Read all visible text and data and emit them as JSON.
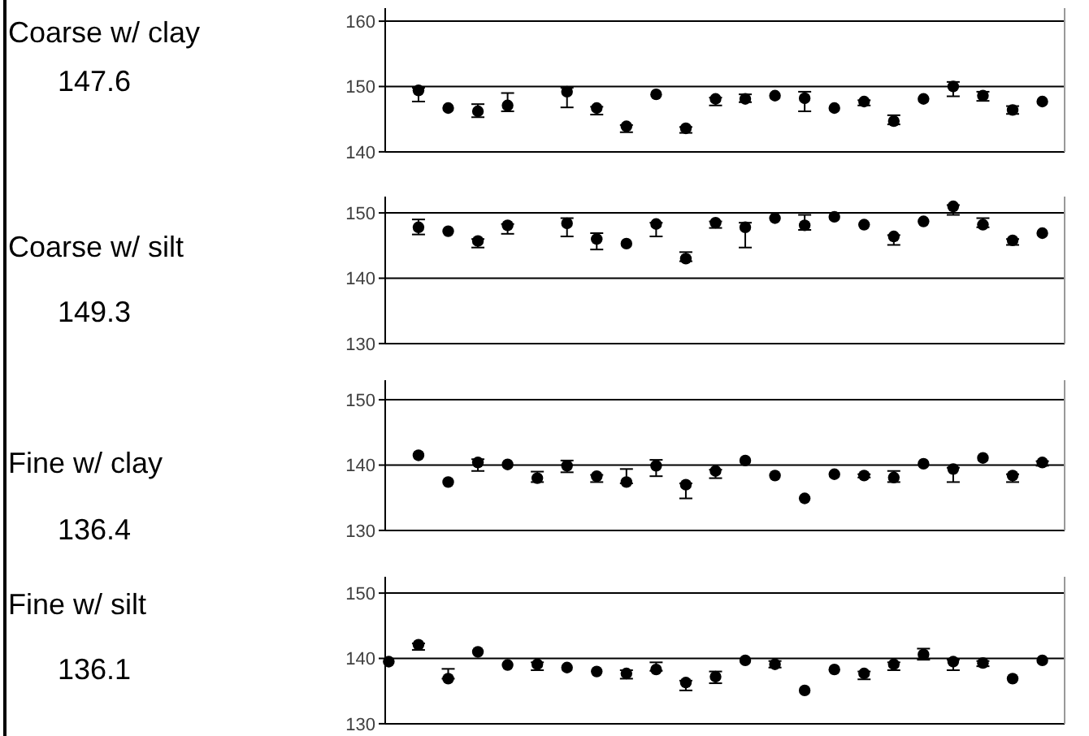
{
  "chart_data": [
    {
      "type": "scatter",
      "annotations": [
        "Coarse w/ clay",
        "147.6"
      ],
      "categories": [
        null,
        null,
        null,
        null,
        null,
        null,
        null,
        null,
        null,
        null,
        null,
        null,
        null,
        null,
        null,
        null,
        null,
        null,
        null,
        null,
        null,
        null,
        null
      ],
      "color": "#000000",
      "marker": "circle",
      "grid": "y",
      "tick_labels": "y",
      "ylim": [
        140,
        162
      ],
      "yticks": [
        140,
        150,
        160
      ],
      "values": [
        null,
        149.4,
        146.7,
        146.2,
        147.1,
        null,
        149.2,
        146.7,
        143.9,
        148.8,
        143.6,
        148.1,
        148.1,
        148.6,
        148.2,
        146.7,
        147.7,
        144.7,
        148.1,
        150.0,
        148.6,
        146.4,
        147.7
      ],
      "errors": [
        null,
        [
          147.7,
          149.8
        ],
        null,
        [
          145.3,
          147.3
        ],
        [
          146.2,
          149.0
        ],
        null,
        [
          146.8,
          149.8
        ],
        [
          145.7,
          146.9
        ],
        [
          143.0,
          144.1
        ],
        null,
        [
          142.9,
          143.8
        ],
        [
          147.1,
          148.3
        ],
        [
          147.6,
          148.8
        ],
        null,
        [
          146.2,
          149.2
        ],
        null,
        [
          147.1,
          147.9
        ],
        [
          144.2,
          145.6
        ],
        null,
        [
          148.5,
          150.7
        ],
        [
          147.8,
          149.2
        ],
        [
          145.8,
          147.0
        ],
        null
      ]
    },
    {
      "type": "scatter",
      "annotations": [
        "Coarse w/ silt",
        "149.3"
      ],
      "categories": [
        null,
        null,
        null,
        null,
        null,
        null,
        null,
        null,
        null,
        null,
        null,
        null,
        null,
        null,
        null,
        null,
        null,
        null,
        null,
        null,
        null,
        null,
        null
      ],
      "color": "#000000",
      "marker": "circle",
      "grid": "y",
      "tick_labels": "y",
      "ylim": [
        130,
        152.5
      ],
      "yticks": [
        130,
        140,
        150
      ],
      "values": [
        null,
        147.8,
        147.2,
        145.7,
        148.1,
        null,
        148.4,
        146.0,
        145.3,
        148.3,
        143.0,
        148.5,
        147.8,
        149.2,
        148.1,
        149.4,
        148.2,
        146.4,
        148.7,
        151.0,
        148.2,
        145.8,
        146.9
      ],
      "errors": [
        null,
        [
          146.7,
          149.0
        ],
        null,
        [
          144.7,
          146.0
        ],
        [
          146.8,
          148.3
        ],
        null,
        [
          146.4,
          149.2
        ],
        [
          144.4,
          146.9
        ],
        null,
        [
          146.4,
          148.5
        ],
        [
          142.6,
          144.0
        ],
        [
          147.7,
          148.7
        ],
        [
          144.7,
          148.5
        ],
        null,
        [
          147.4,
          149.7
        ],
        null,
        null,
        [
          145.1,
          146.6
        ],
        null,
        [
          149.7,
          151.2
        ],
        [
          147.8,
          149.2
        ],
        [
          145.1,
          146.0
        ],
        null
      ]
    },
    {
      "type": "scatter",
      "annotations": [
        "Fine w/ clay",
        "136.4"
      ],
      "categories": [
        null,
        null,
        null,
        null,
        null,
        null,
        null,
        null,
        null,
        null,
        null,
        null,
        null,
        null,
        null,
        null,
        null,
        null,
        null,
        null,
        null,
        null,
        null
      ],
      "color": "#000000",
      "marker": "circle",
      "grid": "y",
      "tick_labels": "y",
      "ylim": [
        130,
        153
      ],
      "yticks": [
        130,
        140,
        150
      ],
      "values": [
        null,
        141.5,
        137.4,
        140.4,
        140.1,
        138.0,
        139.9,
        138.3,
        137.4,
        139.9,
        137.0,
        139.1,
        140.7,
        138.4,
        134.9,
        138.6,
        138.4,
        138.1,
        140.2,
        139.4,
        141.1,
        138.4,
        140.4
      ],
      "errors": [
        null,
        null,
        null,
        [
          139.1,
          140.9
        ],
        null,
        [
          137.4,
          139.0
        ],
        [
          138.9,
          140.7
        ],
        [
          137.4,
          138.5
        ],
        [
          137.2,
          139.4
        ],
        [
          138.3,
          140.8
        ],
        [
          134.9,
          137.2
        ],
        [
          138.0,
          139.3
        ],
        null,
        null,
        null,
        null,
        [
          138.1,
          138.6
        ],
        [
          137.4,
          139.1
        ],
        null,
        [
          137.4,
          139.6
        ],
        null,
        [
          137.4,
          138.6
        ],
        [
          139.9,
          140.6
        ]
      ]
    },
    {
      "type": "scatter",
      "annotations": [
        "Fine w/ silt",
        "136.1"
      ],
      "categories": [
        null,
        null,
        null,
        null,
        null,
        null,
        null,
        null,
        null,
        null,
        null,
        null,
        null,
        null,
        null,
        null,
        null,
        null,
        null,
        null,
        null,
        null,
        null
      ],
      "color": "#000000",
      "marker": "circle",
      "grid": "y",
      "tick_labels": "y",
      "ylim": [
        130,
        152.5
      ],
      "yticks": [
        130,
        140,
        150
      ],
      "values": [
        139.5,
        142.1,
        136.9,
        141.0,
        139.0,
        139.1,
        138.6,
        138.0,
        137.7,
        138.3,
        136.3,
        137.2,
        139.7,
        139.1,
        135.1,
        138.3,
        137.7,
        139.1,
        140.6,
        139.5,
        139.3,
        136.9,
        139.7
      ],
      "errors": [
        null,
        [
          141.3,
          142.3
        ],
        [
          136.9,
          138.4
        ],
        null,
        null,
        [
          138.2,
          139.4
        ],
        null,
        null,
        [
          136.9,
          138.2
        ],
        [
          138.1,
          139.4
        ],
        [
          135.1,
          136.6
        ],
        [
          136.2,
          138.0
        ],
        null,
        [
          138.6,
          139.6
        ],
        null,
        null,
        [
          136.8,
          138.0
        ],
        [
          138.2,
          139.4
        ],
        [
          139.8,
          141.5
        ],
        [
          138.2,
          139.8
        ],
        [
          138.8,
          139.6
        ],
        null,
        null
      ]
    }
  ]
}
